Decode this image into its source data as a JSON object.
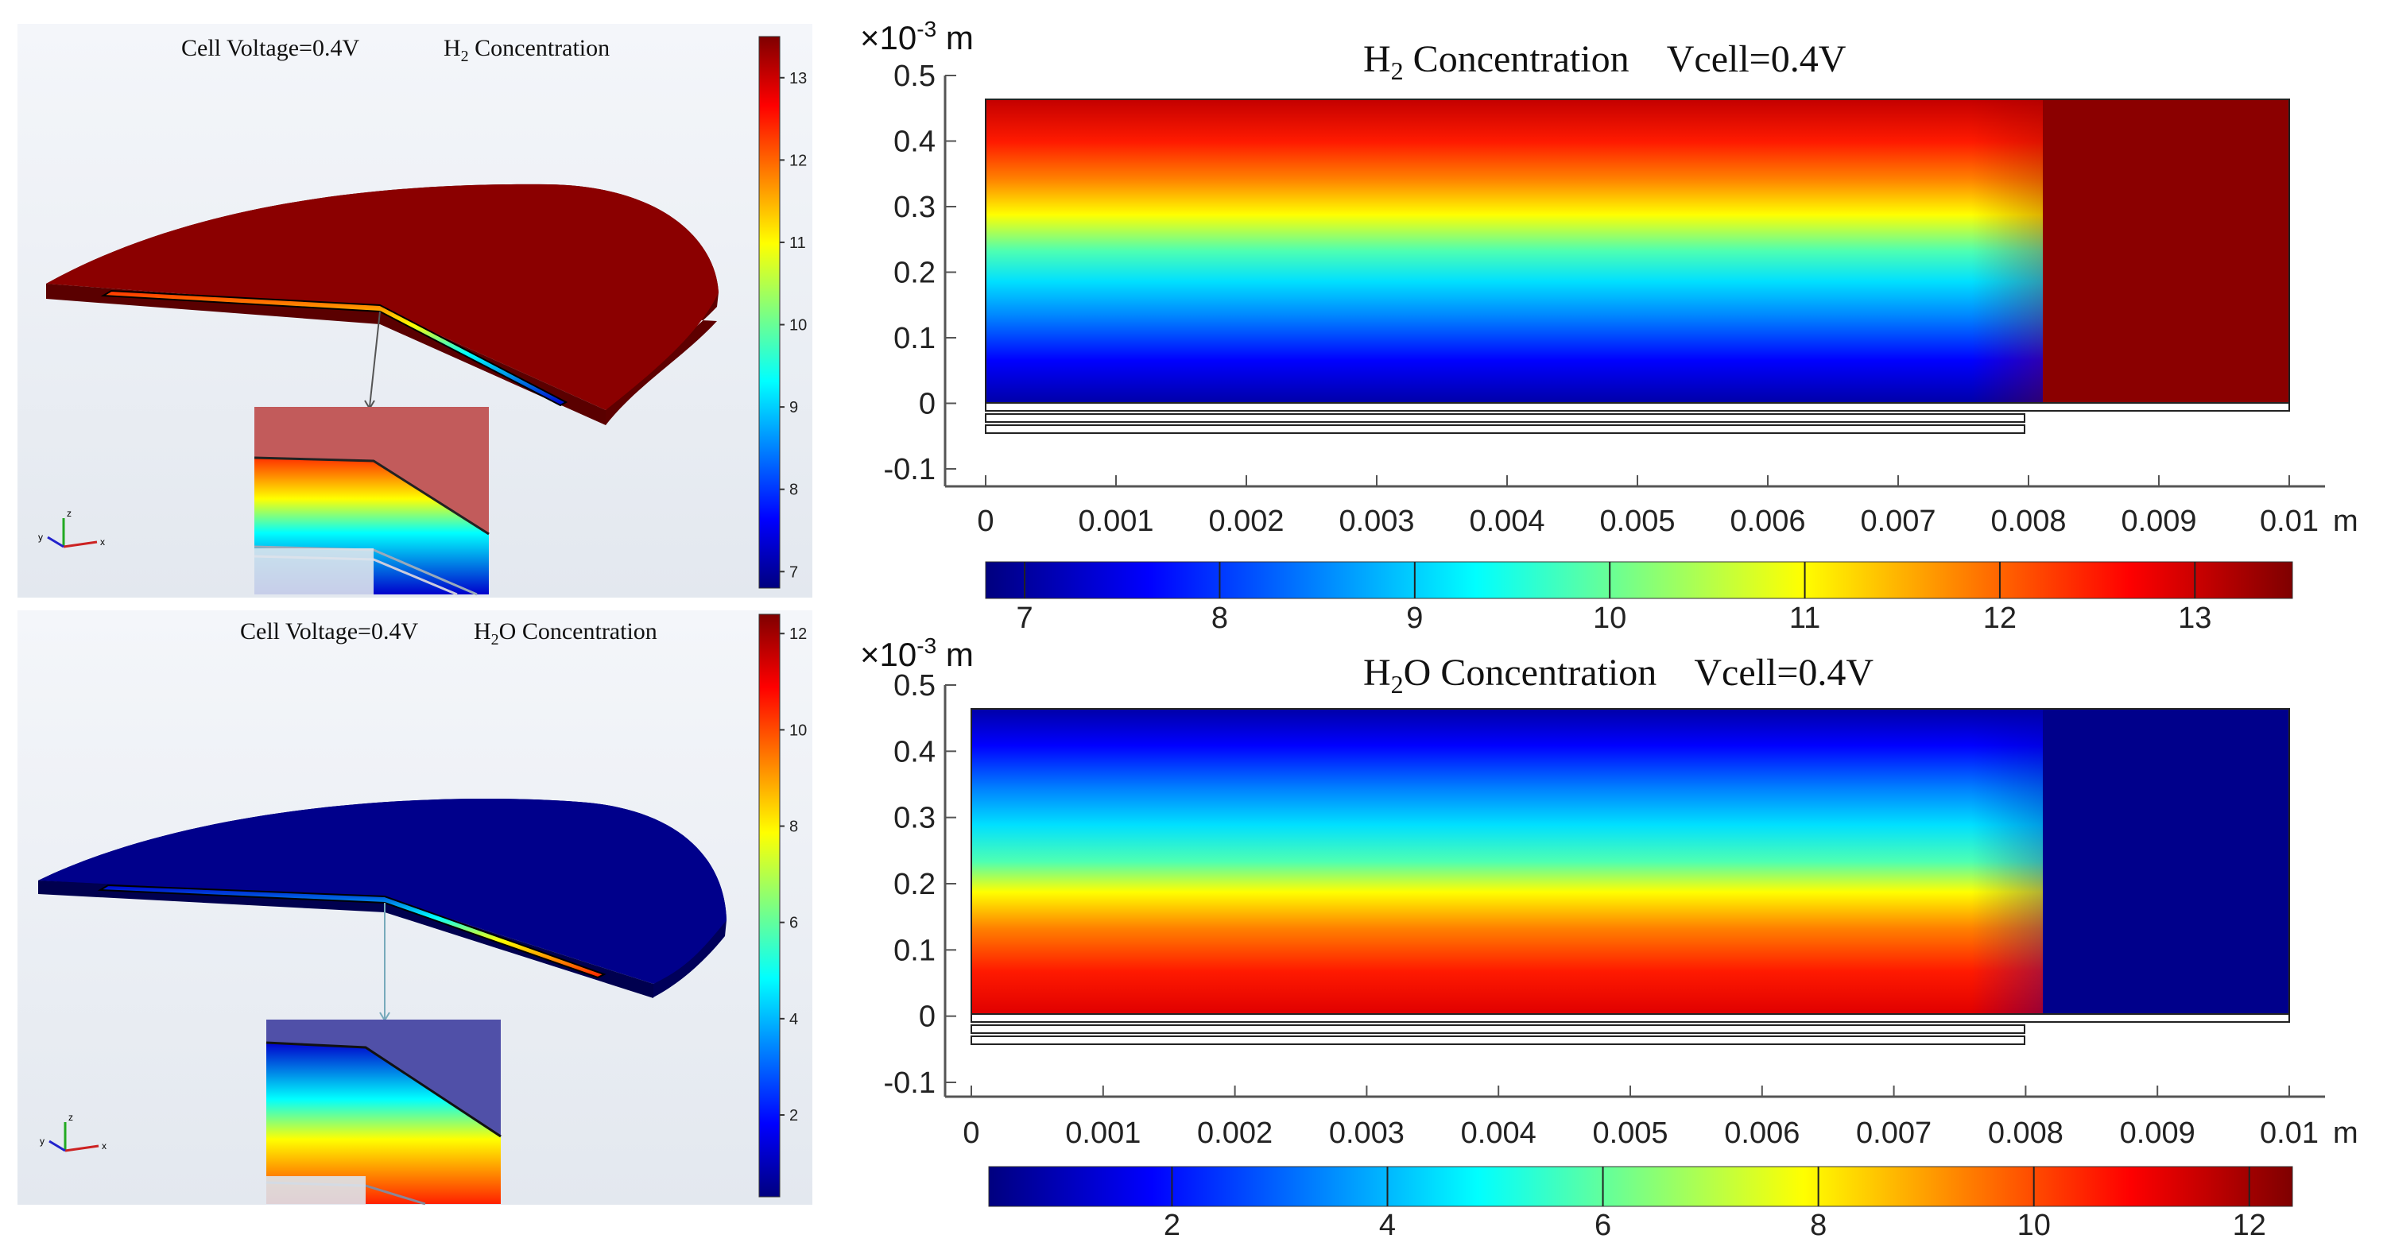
{
  "chart_data": [
    {
      "type": "heatmap",
      "view": "3D",
      "title_left": "Cell Voltage=0.4V",
      "title_right": "H2 Concentration",
      "title_right_parts": {
        "base": "H",
        "sub": "2",
        "rest": " Concentration"
      },
      "colorbar_ticks": [
        7,
        8,
        9,
        10,
        11,
        12,
        13
      ],
      "range": [
        6.8,
        13.5
      ],
      "colormap": "jet",
      "body_color": "#8b0000",
      "axis_labels": {
        "z": "z",
        "y": "y",
        "x": "x"
      }
    },
    {
      "type": "heatmap",
      "view": "3D",
      "title_left": "Cell Voltage=0.4V",
      "title_right": "H2O Concentration",
      "title_right_parts": {
        "base": "H",
        "sub": "2",
        "rest": "O Concentration"
      },
      "colorbar_ticks": [
        2,
        4,
        6,
        8,
        10,
        12
      ],
      "range": [
        0.3,
        12.4
      ],
      "colormap": "jet",
      "body_color": "#00008b",
      "axis_labels": {
        "z": "z",
        "y": "y",
        "x": "x"
      }
    },
    {
      "type": "heatmap",
      "view": "2D",
      "title": "H2 Concentration Vcell=0.4V",
      "title_parts": {
        "base": "H",
        "sub": "2",
        "rest": " Concentration    Vcell=0.4V"
      },
      "y_unit": "×10-3 m",
      "y_unit_parts": {
        "mult": "×10",
        "exp": "-3",
        "unit": " m"
      },
      "x_unit": "m",
      "xlim": [
        0,
        0.01
      ],
      "ylim": [
        -0.1,
        0.5
      ],
      "xticks": [
        "0",
        "0.001",
        "0.002",
        "0.003",
        "0.004",
        "0.005",
        "0.006",
        "0.007",
        "0.008",
        "0.009",
        "0.01"
      ],
      "yticks": [
        "0.5",
        "0.4",
        "0.3",
        "0.2",
        "0.1",
        "0",
        "-0.1"
      ],
      "colorbar_ticks": [
        7,
        8,
        9,
        10,
        11,
        12,
        13
      ],
      "range": [
        6.8,
        13.5
      ],
      "low_value_at_bottom": true,
      "electrode_end_x": 0.008,
      "domain_top": 0.465
    },
    {
      "type": "heatmap",
      "view": "2D",
      "title": "H2O Concentration Vcell=0.4V",
      "title_parts": {
        "base": "H",
        "sub": "2",
        "rest": "O Concentration    Vcell=0.4V"
      },
      "y_unit": "×10-3 m",
      "y_unit_parts": {
        "mult": "×10",
        "exp": "-3",
        "unit": " m"
      },
      "x_unit": "m",
      "xlim": [
        0,
        0.01
      ],
      "ylim": [
        -0.1,
        0.5
      ],
      "xticks": [
        "0",
        "0.001",
        "0.002",
        "0.003",
        "0.004",
        "0.005",
        "0.006",
        "0.007",
        "0.008",
        "0.009",
        "0.01"
      ],
      "yticks": [
        "0.5",
        "0.4",
        "0.3",
        "0.2",
        "0.1",
        "0",
        "-0.1"
      ],
      "colorbar_ticks": [
        2,
        4,
        6,
        8,
        10,
        12
      ],
      "range": [
        0.3,
        12.4
      ],
      "low_value_at_bottom": false,
      "electrode_end_x": 0.008,
      "domain_top": 0.465
    }
  ],
  "colors": {
    "jet": [
      "#00007f",
      "#0000ff",
      "#007fff",
      "#00ffff",
      "#7fff7f",
      "#ffff00",
      "#ff7f00",
      "#ff0000",
      "#7f0000"
    ],
    "panel_bg": "#eef2f7"
  }
}
